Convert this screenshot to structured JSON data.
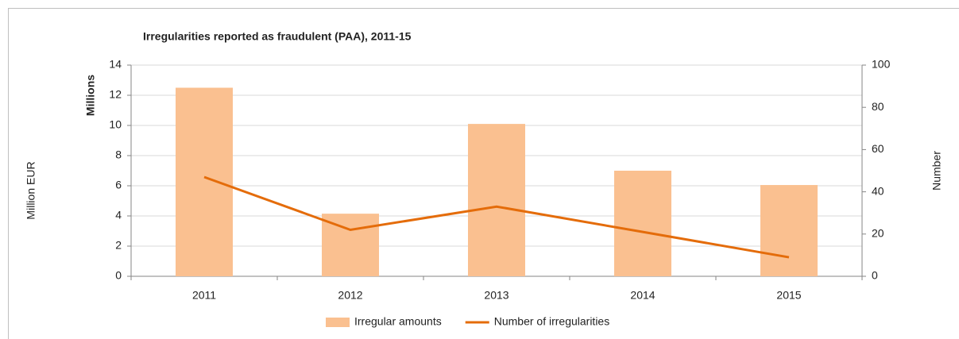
{
  "chart_data": {
    "type": "bar",
    "title": "Irregularities reported as fraudulent (PAA), 2011-15",
    "ylabel": "Million EUR",
    "y_units_label": "Millions",
    "y2label": "Number",
    "categories": [
      "2011",
      "2012",
      "2013",
      "2014",
      "2015"
    ],
    "series": [
      {
        "name": "Irregular amounts",
        "type": "bar",
        "color": "#fac090",
        "values": [
          12.5,
          4.15,
          10.1,
          7.0,
          6.05
        ]
      },
      {
        "name": "Number of irregularities",
        "type": "line",
        "axis": "y2",
        "color": "#e46c0a",
        "values": [
          47,
          22,
          33,
          21,
          9
        ]
      }
    ],
    "ylim": [
      0,
      14
    ],
    "yticks": [
      0,
      2,
      4,
      6,
      8,
      10,
      12,
      14
    ],
    "y2lim": [
      0,
      100
    ],
    "y2ticks": [
      0,
      20,
      40,
      60,
      80,
      100
    ],
    "grid": true,
    "legend": "bottom"
  }
}
